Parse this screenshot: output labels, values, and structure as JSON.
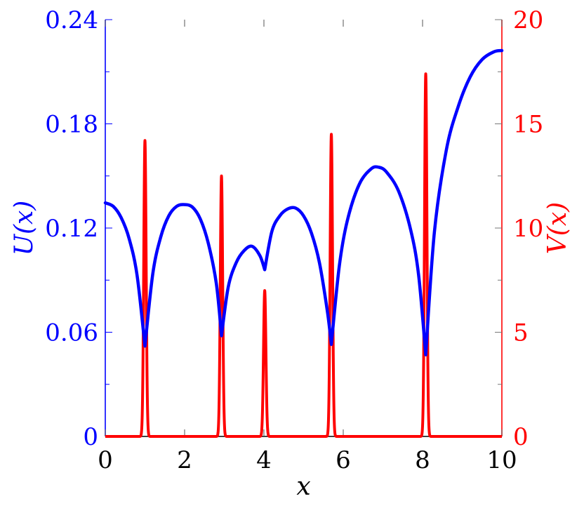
{
  "chart_data": {
    "type": "line",
    "xlabel": "x",
    "xlim": [
      0,
      10
    ],
    "x_ticks": [
      "0",
      "2",
      "4",
      "6",
      "8",
      "10"
    ],
    "y_left": {
      "label": "U(x)",
      "ylim": [
        0,
        0.24
      ],
      "ticks": [
        "0",
        "0.06",
        "0.12",
        "0.18",
        "0.24"
      ],
      "color": "#0000ff"
    },
    "y_right": {
      "label": "V(x)",
      "ylim": [
        0,
        20
      ],
      "ticks": [
        "0",
        "5",
        "10",
        "15",
        "20"
      ],
      "color": "#ff0000"
    },
    "grid": false,
    "series": [
      {
        "name": "U(x)",
        "axis": "left",
        "color": "#0000ff",
        "points": [
          [
            0,
            0.1345
          ],
          [
            0.2,
            0.1325
          ],
          [
            0.4,
            0.126
          ],
          [
            0.6,
            0.114
          ],
          [
            0.8,
            0.093
          ],
          [
            1.0,
            0.052
          ],
          [
            1.2,
            0.094
          ],
          [
            1.4,
            0.115
          ],
          [
            1.6,
            0.127
          ],
          [
            1.8,
            0.1325
          ],
          [
            2.0,
            0.1335
          ],
          [
            2.2,
            0.132
          ],
          [
            2.4,
            0.125
          ],
          [
            2.6,
            0.111
          ],
          [
            2.8,
            0.088
          ],
          [
            2.93,
            0.058
          ],
          [
            3.1,
            0.086
          ],
          [
            3.3,
            0.1
          ],
          [
            3.5,
            0.107
          ],
          [
            3.7,
            0.1095
          ],
          [
            3.9,
            0.104
          ],
          [
            4.02,
            0.096
          ],
          [
            4.2,
            0.118
          ],
          [
            4.4,
            0.127
          ],
          [
            4.6,
            0.131
          ],
          [
            4.8,
            0.1315
          ],
          [
            5.0,
            0.127
          ],
          [
            5.2,
            0.117
          ],
          [
            5.4,
            0.1
          ],
          [
            5.6,
            0.072
          ],
          [
            5.7,
            0.053
          ],
          [
            5.9,
            0.098
          ],
          [
            6.1,
            0.124
          ],
          [
            6.4,
            0.145
          ],
          [
            6.7,
            0.154
          ],
          [
            6.9,
            0.155
          ],
          [
            7.1,
            0.152
          ],
          [
            7.4,
            0.141
          ],
          [
            7.7,
            0.119
          ],
          [
            7.9,
            0.093
          ],
          [
            8.08,
            0.047
          ],
          [
            8.3,
            0.118
          ],
          [
            8.6,
            0.165
          ],
          [
            8.9,
            0.19
          ],
          [
            9.2,
            0.207
          ],
          [
            9.5,
            0.217
          ],
          [
            9.8,
            0.2215
          ],
          [
            10.0,
            0.2222
          ]
        ]
      },
      {
        "name": "V(x)",
        "axis": "right",
        "color": "#ff0000",
        "peaks": [
          {
            "x": 1.0,
            "height": 14.2
          },
          {
            "x": 2.93,
            "height": 12.5
          },
          {
            "x": 4.02,
            "height": 7.0
          },
          {
            "x": 5.7,
            "height": 14.5
          },
          {
            "x": 8.08,
            "height": 17.4
          }
        ],
        "peak_width": 0.03
      }
    ]
  }
}
